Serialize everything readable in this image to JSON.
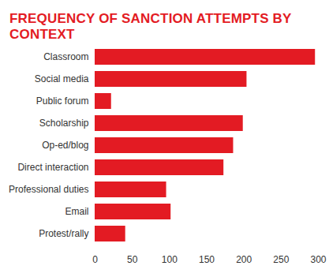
{
  "chart_data": {
    "type": "bar",
    "title": "FREQUENCY OF SANCTION ATTEMPTS BY CONTEXT",
    "orientation": "horizontal",
    "categories": [
      "Classroom",
      "Social media",
      "Public forum",
      "Scholarship",
      "Op-ed/blog",
      "Direct interaction",
      "Professional duties",
      "Email",
      "Protest/rally"
    ],
    "values": [
      296,
      204,
      22,
      199,
      186,
      173,
      96,
      102,
      41
    ],
    "color": "#e31b23",
    "xlim": [
      0,
      300
    ],
    "xticks": [
      0,
      50,
      100,
      150,
      200,
      250,
      300
    ],
    "grid": false
  }
}
